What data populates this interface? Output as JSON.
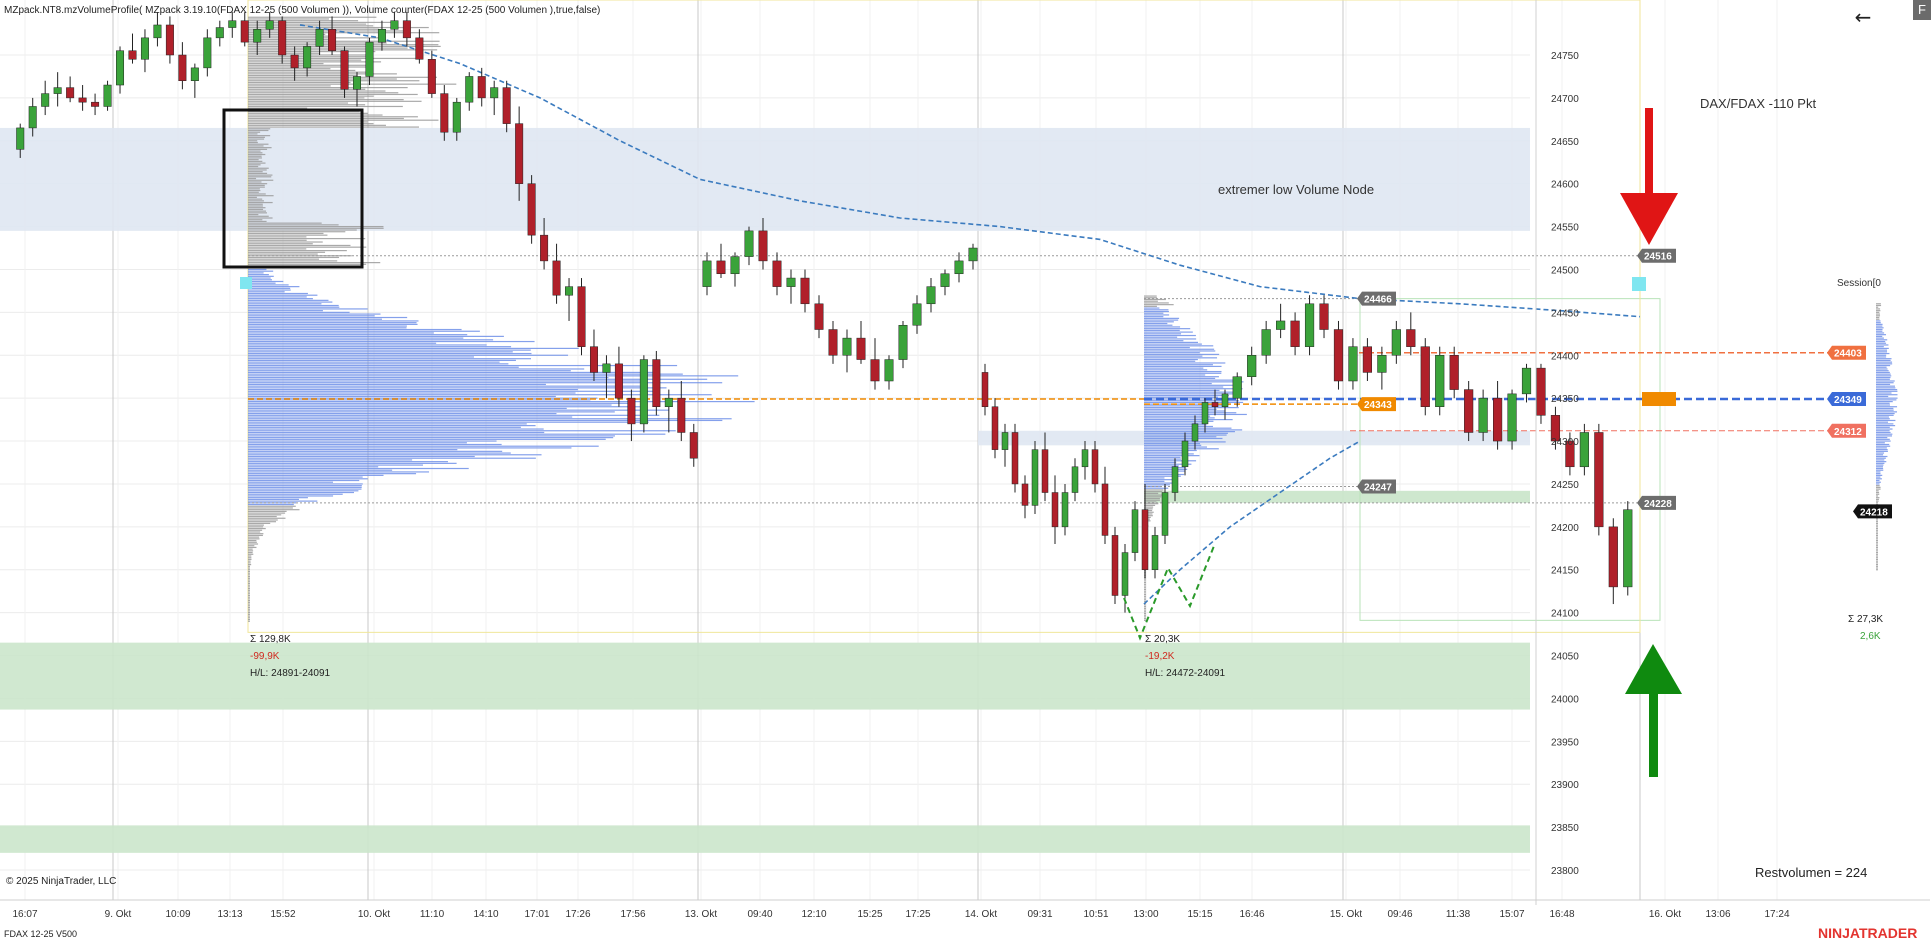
{
  "indicator_label": "MZpack.NT8.mzVolumeProfile( MZpack 3.19.10(FDAX 12-25 (500 Volumen )), Volume counter(FDAX 12-25 (500 Volumen ),true,false)",
  "instrument_label": "FDAX 12-25 V500",
  "copyright": "© 2025 NinjaTrader, LLC",
  "brand": "NINJATRADER",
  "corner_button": "F",
  "back_icon": "arrow-left-icon",
  "colors": {
    "bull": "#3aa33a",
    "bear": "#b0202a",
    "profile_blue": "#6f8fe8",
    "profile_gray": "#9a9a9a",
    "vwap": "#3b7bbf",
    "poc": "#f08a00",
    "zone_blue": "#dfe7f2",
    "zone_green": "#cbe6cb",
    "red_arrow": "#e01515",
    "green_arrow": "#0f8a0f",
    "brand": "#e3342f"
  },
  "chart_data": {
    "type": "candlestick",
    "title": "",
    "ylim": [
      23780,
      24800
    ],
    "y_ticks": [
      24750,
      24700,
      24650,
      24600,
      24550,
      24500,
      24450,
      24400,
      24350,
      24300,
      24250,
      24200,
      24150,
      24100,
      24050,
      24000,
      23950,
      23900,
      23850,
      23800
    ],
    "x_ticks": [
      "16:07",
      "9. Okt",
      "10:09",
      "13:13",
      "15:52",
      "10. Okt",
      "11:10",
      "14:10",
      "17:01",
      "17:26",
      "17:56",
      "13. Okt",
      "09:40",
      "12:10",
      "15:25",
      "17:25",
      "14. Okt",
      "09:31",
      "10:51",
      "13:00",
      "15:15",
      "16:46",
      "15. Okt",
      "09:46",
      "11:38",
      "15:07",
      "16:48",
      "16. Okt",
      "13:06",
      "17:24"
    ],
    "candles": [
      [
        24640,
        24670,
        24630,
        24665
      ],
      [
        24665,
        24700,
        24655,
        24690
      ],
      [
        24690,
        24720,
        24680,
        24705
      ],
      [
        24705,
        24730,
        24690,
        24712
      ],
      [
        24712,
        24725,
        24695,
        24700
      ],
      [
        24700,
        24715,
        24685,
        24695
      ],
      [
        24695,
        24705,
        24680,
        24690
      ],
      [
        24690,
        24720,
        24685,
        24715
      ],
      [
        24715,
        24760,
        24705,
        24755
      ],
      [
        24755,
        24775,
        24740,
        24745
      ],
      [
        24745,
        24780,
        24730,
        24770
      ],
      [
        24770,
        24800,
        24760,
        24785
      ],
      [
        24785,
        24795,
        24740,
        24750
      ],
      [
        24750,
        24765,
        24710,
        24720
      ],
      [
        24720,
        24740,
        24700,
        24735
      ],
      [
        24735,
        24780,
        24725,
        24770
      ],
      [
        24770,
        24790,
        24760,
        24782
      ],
      [
        24782,
        24800,
        24770,
        24790
      ],
      [
        24790,
        24800,
        24760,
        24765
      ],
      [
        24765,
        24790,
        24750,
        24780
      ],
      [
        24780,
        24800,
        24770,
        24790
      ],
      [
        24790,
        24795,
        24740,
        24750
      ],
      [
        24750,
        24760,
        24720,
        24735
      ],
      [
        24735,
        24765,
        24725,
        24760
      ],
      [
        24760,
        24790,
        24750,
        24780
      ],
      [
        24780,
        24795,
        24750,
        24755
      ],
      [
        24755,
        24760,
        24700,
        24710
      ],
      [
        24710,
        24730,
        24690,
        24725
      ],
      [
        24725,
        24770,
        24715,
        24765
      ],
      [
        24765,
        24790,
        24755,
        24780
      ],
      [
        24780,
        24800,
        24770,
        24790
      ],
      [
        24790,
        24800,
        24760,
        24770
      ],
      [
        24770,
        24780,
        24740,
        24745
      ],
      [
        24745,
        24755,
        24700,
        24705
      ],
      [
        24705,
        24715,
        24650,
        24660
      ],
      [
        24660,
        24700,
        24650,
        24695
      ],
      [
        24695,
        24730,
        24685,
        24725
      ],
      [
        24725,
        24735,
        24690,
        24700
      ],
      [
        24700,
        24720,
        24680,
        24712
      ],
      [
        24712,
        24720,
        24660,
        24670
      ],
      [
        24670,
        24690,
        24580,
        24600
      ],
      [
        24600,
        24610,
        24530,
        24540
      ],
      [
        24540,
        24560,
        24500,
        24510
      ],
      [
        24510,
        24530,
        24460,
        24470
      ],
      [
        24470,
        24490,
        24440,
        24480
      ],
      [
        24480,
        24490,
        24400,
        24410
      ],
      [
        24410,
        24430,
        24370,
        24380
      ],
      [
        24380,
        24400,
        24350,
        24390
      ],
      [
        24390,
        24410,
        24340,
        24350
      ],
      [
        24350,
        24360,
        24300,
        24320
      ],
      [
        24320,
        24400,
        24310,
        24395
      ],
      [
        24395,
        24405,
        24330,
        24340
      ],
      [
        24340,
        24360,
        24310,
        24350
      ],
      [
        24350,
        24370,
        24300,
        24310
      ],
      [
        24310,
        24320,
        24270,
        24280
      ],
      [
        24480,
        24520,
        24470,
        24510
      ],
      [
        24510,
        24530,
        24490,
        24495
      ],
      [
        24495,
        24520,
        24480,
        24515
      ],
      [
        24515,
        24550,
        24505,
        24545
      ],
      [
        24545,
        24560,
        24500,
        24510
      ],
      [
        24510,
        24520,
        24470,
        24480
      ],
      [
        24480,
        24500,
        24460,
        24490
      ],
      [
        24490,
        24500,
        24450,
        24460
      ],
      [
        24460,
        24470,
        24420,
        24430
      ],
      [
        24430,
        24440,
        24390,
        24400
      ],
      [
        24400,
        24430,
        24380,
        24420
      ],
      [
        24420,
        24440,
        24390,
        24395
      ],
      [
        24395,
        24420,
        24360,
        24370
      ],
      [
        24370,
        24400,
        24360,
        24395
      ],
      [
        24395,
        24440,
        24385,
        24435
      ],
      [
        24435,
        24470,
        24425,
        24460
      ],
      [
        24460,
        24490,
        24450,
        24480
      ],
      [
        24480,
        24500,
        24470,
        24495
      ],
      [
        24495,
        24520,
        24485,
        24510
      ],
      [
        24510,
        24530,
        24500,
        24525
      ],
      [
        24380,
        24390,
        24330,
        24340
      ],
      [
        24340,
        24350,
        24280,
        24290
      ],
      [
        24290,
        24320,
        24270,
        24310
      ],
      [
        24310,
        24320,
        24240,
        24250
      ],
      [
        24250,
        24260,
        24210,
        24225
      ],
      [
        24225,
        24300,
        24215,
        24290
      ],
      [
        24290,
        24310,
        24230,
        24240
      ],
      [
        24240,
        24260,
        24180,
        24200
      ],
      [
        24200,
        24250,
        24190,
        24240
      ],
      [
        24240,
        24280,
        24230,
        24270
      ],
      [
        24270,
        24300,
        24255,
        24290
      ],
      [
        24290,
        24300,
        24240,
        24250
      ],
      [
        24250,
        24270,
        24180,
        24190
      ],
      [
        24190,
        24200,
        24110,
        24120
      ],
      [
        24120,
        24180,
        24100,
        24170
      ],
      [
        24170,
        24230,
        24160,
        24220
      ],
      [
        24220,
        24250,
        24140,
        24150
      ],
      [
        24150,
        24200,
        24140,
        24190
      ],
      [
        24190,
        24250,
        24180,
        24240
      ],
      [
        24240,
        24280,
        24230,
        24270
      ],
      [
        24270,
        24310,
        24260,
        24300
      ],
      [
        24300,
        24330,
        24290,
        24320
      ],
      [
        24320,
        24350,
        24310,
        24345
      ],
      [
        24345,
        24360,
        24330,
        24340
      ],
      [
        24340,
        24360,
        24325,
        24355
      ],
      [
        24350,
        24380,
        24340,
        24375
      ],
      [
        24375,
        24410,
        24365,
        24400
      ],
      [
        24400,
        24440,
        24390,
        24430
      ],
      [
        24430,
        24460,
        24420,
        24440
      ],
      [
        24440,
        24450,
        24400,
        24410
      ],
      [
        24410,
        24470,
        24400,
        24460
      ],
      [
        24460,
        24470,
        24420,
        24430
      ],
      [
        24430,
        24440,
        24360,
        24370
      ],
      [
        24370,
        24420,
        24360,
        24410
      ],
      [
        24410,
        24420,
        24370,
        24380
      ],
      [
        24380,
        24410,
        24360,
        24400
      ],
      [
        24400,
        24440,
        24390,
        24430
      ],
      [
        24430,
        24450,
        24400,
        24410
      ],
      [
        24410,
        24420,
        24330,
        24340
      ],
      [
        24340,
        24410,
        24330,
        24400
      ],
      [
        24400,
        24410,
        24350,
        24360
      ],
      [
        24360,
        24370,
        24300,
        24310
      ],
      [
        24310,
        24360,
        24300,
        24350
      ],
      [
        24350,
        24370,
        24290,
        24300
      ],
      [
        24300,
        24360,
        24290,
        24355
      ],
      [
        24355,
        24390,
        24345,
        24385
      ],
      [
        24385,
        24390,
        24320,
        24330
      ],
      [
        24330,
        24340,
        24290,
        24300
      ],
      [
        24300,
        24310,
        24260,
        24270
      ],
      [
        24270,
        24320,
        24260,
        24310
      ],
      [
        24310,
        24320,
        24190,
        24200
      ],
      [
        24200,
        24210,
        24110,
        24130
      ],
      [
        24130,
        24230,
        24120,
        24220
      ]
    ],
    "price_markers": [
      {
        "value": 24516,
        "label": "24516",
        "color": "#6d6d6d"
      },
      {
        "value": 24466,
        "label": "24466",
        "color": "#6d6d6d"
      },
      {
        "value": 24403,
        "label": "24403",
        "color": "#f07040"
      },
      {
        "value": 24349,
        "label": "24349",
        "color": "#3a6ad8"
      },
      {
        "value": 24343,
        "label": "24343",
        "color": "#f08a00"
      },
      {
        "value": 24312,
        "label": "24312",
        "color": "#f07060"
      },
      {
        "value": 24247,
        "label": "24247",
        "color": "#6d6d6d"
      },
      {
        "value": 24228,
        "label": "24228",
        "color": "#6d6d6d"
      },
      {
        "value": 24218,
        "label": "24218",
        "color": "#111111"
      }
    ],
    "annotations": {
      "dax_note": "DAX/FDAX -110 Pkt",
      "zone_note": "extremer low Volume Node",
      "session_label": "Session[0",
      "restvolumen": "Restvolumen = 224"
    },
    "profiles": [
      {
        "sum": "Σ 129,8K",
        "delta": "-99,9K",
        "hl": "H/L: 24891-24091"
      },
      {
        "sum": "Σ 20,3K",
        "delta": "-19,2K",
        "hl": "H/L: 24472-24091"
      }
    ],
    "session_stats": {
      "sum": "Σ 27,3K",
      "delta": "2,6K"
    },
    "zones": [
      {
        "from": 24545,
        "to": 24665,
        "color": "blue"
      },
      {
        "from": 24295,
        "to": 24312,
        "color": "blue"
      },
      {
        "from": 24228,
        "to": 24242,
        "color": "green"
      },
      {
        "from": 23987,
        "to": 24065,
        "color": "green"
      },
      {
        "from": 23820,
        "to": 23852,
        "color": "green"
      }
    ]
  }
}
